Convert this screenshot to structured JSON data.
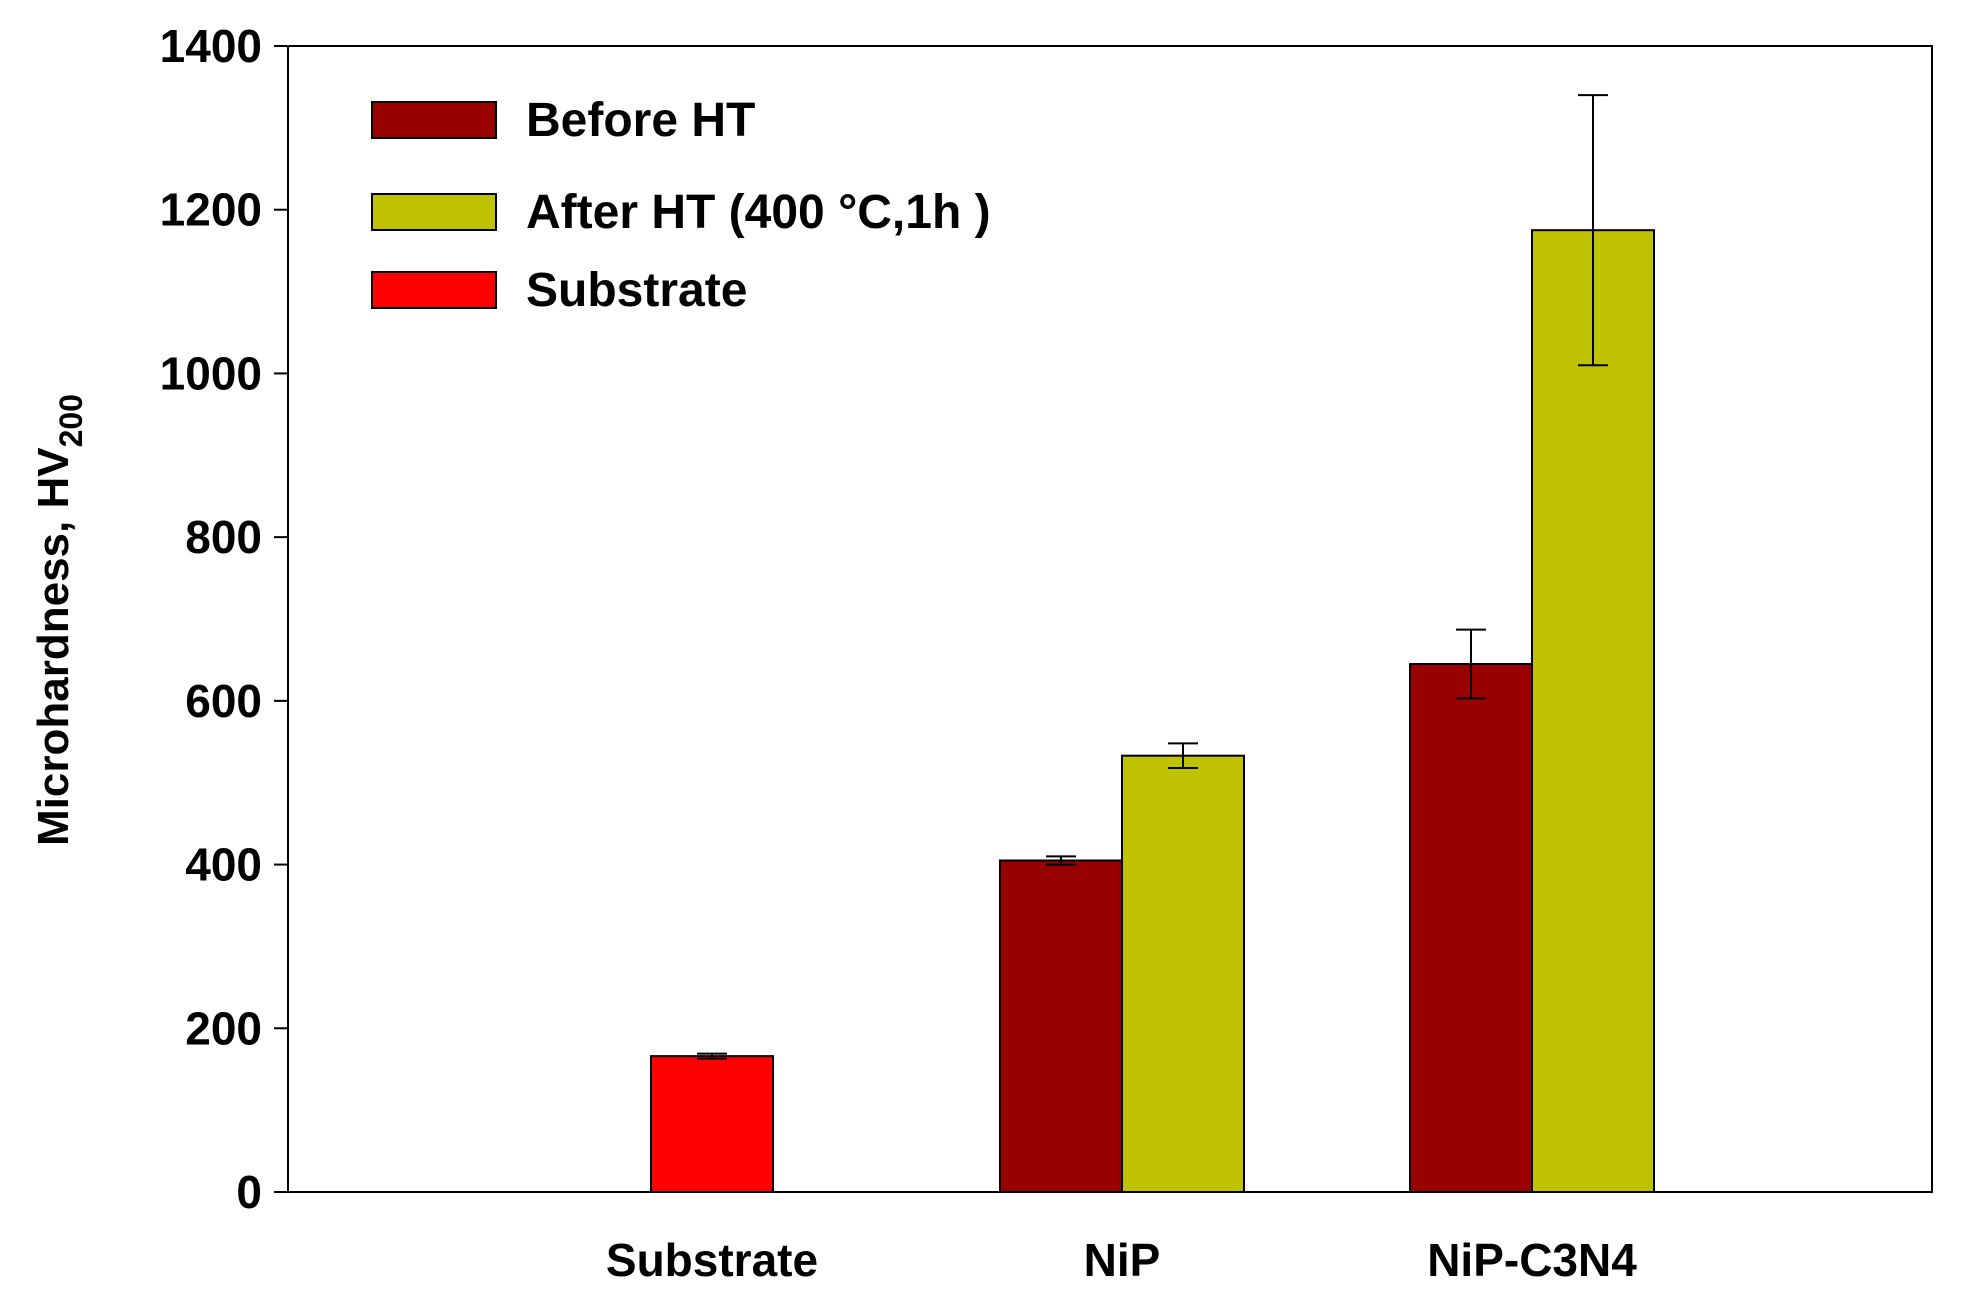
{
  "chart_data": {
    "type": "bar",
    "title": "",
    "xlabel": "",
    "ylabel": "Microhardness, HV",
    "ylabel_subscript": "200",
    "ylim": [
      0,
      1400
    ],
    "yticks": [
      0,
      200,
      400,
      600,
      800,
      1000,
      1200,
      1400
    ],
    "ytick_labels": [
      "0",
      "200",
      "400",
      "600",
      "800",
      "1000",
      "1200",
      "1400"
    ],
    "categories": [
      "Substrate",
      "NiP",
      "NiP-C3N4"
    ],
    "series": [
      {
        "name": "Before HT",
        "color": "#990000",
        "values": [
          null,
          405,
          645
        ],
        "errors": [
          null,
          5,
          42
        ]
      },
      {
        "name": "After HT (400 °C,1h )",
        "color": "#bfc200",
        "values": [
          null,
          533,
          1175
        ],
        "errors": [
          null,
          15,
          165
        ]
      },
      {
        "name": "Substrate",
        "color": "#ff0000",
        "values": [
          166,
          null,
          null
        ],
        "errors": [
          3,
          null,
          null
        ]
      }
    ],
    "legend_position": "top-left",
    "grid": false
  }
}
